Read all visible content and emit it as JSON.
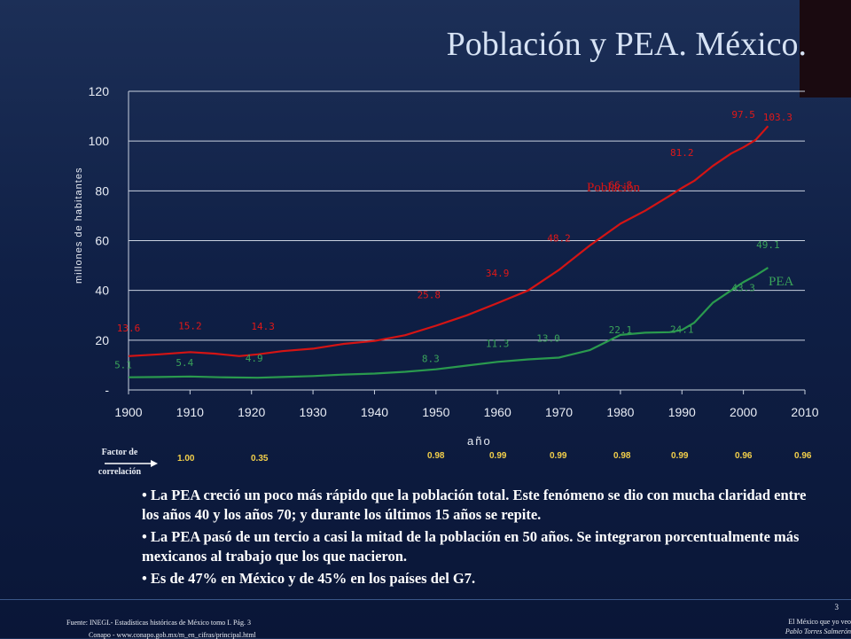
{
  "title": "Población y PEA. México.",
  "chart_data": {
    "type": "line",
    "xlabel": "año",
    "ylabel": "millones de habitantes",
    "xlim": [
      1900,
      2010
    ],
    "ylim": [
      0,
      120
    ],
    "x_ticks": [
      "1900",
      "1910",
      "1920",
      "1930",
      "1940",
      "1950",
      "1960",
      "1970",
      "1980",
      "1990",
      "2000",
      "2010"
    ],
    "y_ticks": [
      "-",
      "20",
      "40",
      "60",
      "80",
      "100",
      "120"
    ],
    "grid": "horizontal",
    "series": [
      {
        "name": "Población",
        "color": "#d41414",
        "x": [
          1900,
          1905,
          1910,
          1914,
          1918,
          1921,
          1925,
          1930,
          1935,
          1940,
          1945,
          1950,
          1955,
          1960,
          1965,
          1970,
          1975,
          1980,
          1984,
          1988,
          1990,
          1992,
          1995,
          1998,
          2000,
          2002,
          2004
        ],
        "values": [
          13.6,
          14.3,
          15.2,
          14.6,
          13.6,
          14.3,
          15.6,
          16.6,
          18.5,
          19.7,
          22,
          25.8,
          30,
          34.9,
          40,
          48.2,
          58,
          66.8,
          72,
          78,
          81.2,
          84,
          90,
          95,
          97.5,
          100.5,
          106
        ]
      },
      {
        "name": "PEA",
        "color": "#2a9a4e",
        "x": [
          1900,
          1905,
          1910,
          1915,
          1921,
          1925,
          1930,
          1935,
          1940,
          1945,
          1950,
          1955,
          1960,
          1965,
          1970,
          1975,
          1980,
          1984,
          1988,
          1990,
          1992,
          1995,
          1998,
          2000,
          2002,
          2004
        ],
        "values": [
          5.1,
          5.2,
          5.4,
          5.1,
          4.9,
          5.2,
          5.6,
          6.2,
          6.6,
          7.3,
          8.3,
          9.8,
          11.3,
          12.3,
          13.0,
          16.0,
          22.1,
          23.0,
          23.2,
          24.1,
          27.0,
          35.0,
          40.0,
          43.3,
          46.0,
          49.1
        ]
      }
    ],
    "data_labels": [
      {
        "series": "Población",
        "x": 1900,
        "y": 13.6,
        "text": "13.6"
      },
      {
        "series": "Población",
        "x": 1910,
        "y": 15.2,
        "text": "15.2"
      },
      {
        "series": "Población",
        "x": 1921,
        "y": 14.3,
        "text": "14.3"
      },
      {
        "series": "Población",
        "x": 1950,
        "y": 25.8,
        "text": "25.8"
      },
      {
        "series": "Población",
        "x": 1960,
        "y": 34.9,
        "text": "34.9"
      },
      {
        "series": "Población",
        "x": 1970,
        "y": 48.2,
        "text": "48.2"
      },
      {
        "series": "Población",
        "x": 1980,
        "y": 66.8,
        "text": "66.8"
      },
      {
        "series": "Población",
        "x": 1990,
        "y": 81.2,
        "text": "81.2"
      },
      {
        "series": "Población",
        "x": 2000,
        "y": 97.5,
        "text": "97.5"
      },
      {
        "series": "Población",
        "x": 2005,
        "y": 103.3,
        "text": "103.3"
      },
      {
        "series": "PEA",
        "x": 1900,
        "y": 5.1,
        "text": "5.1"
      },
      {
        "series": "PEA",
        "x": 1910,
        "y": 5.4,
        "text": "5.4"
      },
      {
        "series": "PEA",
        "x": 1921,
        "y": 4.9,
        "text": "4.9"
      },
      {
        "series": "PEA",
        "x": 1950,
        "y": 8.3,
        "text": "8.3"
      },
      {
        "series": "PEA",
        "x": 1960,
        "y": 11.3,
        "text": "11.3"
      },
      {
        "series": "PEA",
        "x": 1970,
        "y": 13.0,
        "text": "13.0"
      },
      {
        "series": "PEA",
        "x": 1980,
        "y": 22.1,
        "text": "22.1"
      },
      {
        "series": "PEA",
        "x": 1990,
        "y": 24.1,
        "text": "24.1"
      },
      {
        "series": "PEA",
        "x": 2000,
        "y": 43.3,
        "text": "43.3"
      },
      {
        "series": "PEA",
        "x": 2004,
        "y": 49.1,
        "text": "49.1"
      }
    ],
    "series_labels": [
      {
        "text": "Población",
        "color": "#d41414"
      },
      {
        "text": "PEA",
        "color": "#3aa35a"
      }
    ]
  },
  "correlation": {
    "title_line1": "Factor de",
    "title_line2": "correlación",
    "values": [
      "1.00",
      "0.35",
      "0.98",
      "0.99",
      "0.99",
      "0.98",
      "0.99",
      "0.96",
      "0.96"
    ]
  },
  "bullets": [
    "•  La PEA creció un poco más rápido que la población total. Este fenómeno se dio con mucha claridad entre los años 40 y los años 70; y durante los últimos 15 años se repite.",
    "•  La PEA pasó de un tercio a casi la mitad de la población en 50 años. Se integraron porcentualmente más mexicanos al trabajo que los que nacieron.",
    "•  Es de 47% en México y de 45% en los países del G7."
  ],
  "footer": {
    "source": "Fuente: INEGI.- Estadísticas históricas de México tomo I. Pág. 3",
    "source2": "Conapo - www.conapo.gob.mx/m_en_cifras/principal.html",
    "page": "3",
    "brand_line1": "El México que yo veo",
    "brand_line2": "Pablo Torres Salmerón"
  },
  "colors": {
    "background": "#0f1f45",
    "poblacion": "#d41414",
    "pea": "#2a9a4e",
    "correlation_values": "#f2cf4a"
  }
}
